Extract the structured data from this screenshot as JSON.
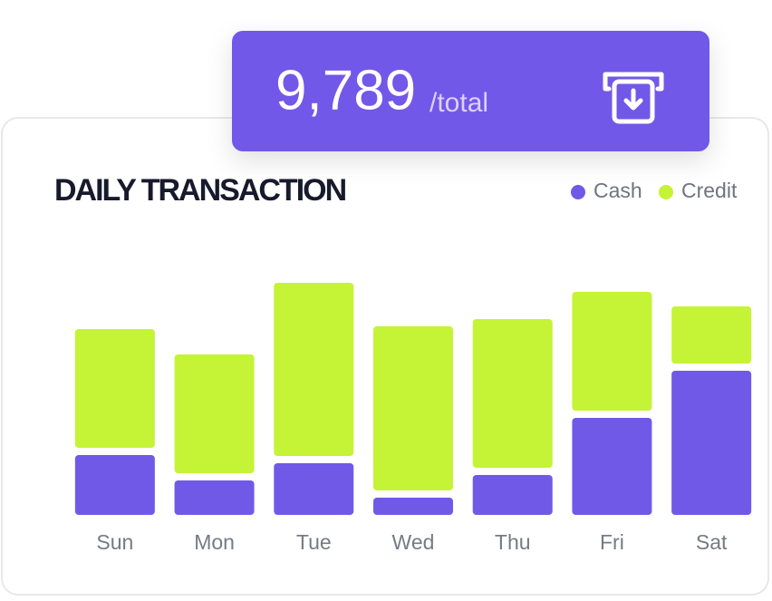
{
  "total": "9,789",
  "total_unit": "/total",
  "chart_data": {
    "type": "stacked-bar",
    "title": "DAILY TRANSACTION",
    "categories": [
      "Sun",
      "Mon",
      "Tue",
      "Wed",
      "Thu",
      "Fri",
      "Sat"
    ],
    "series": [
      {
        "name": "Cash",
        "color": "#7159e8",
        "values": [
          66,
          38,
          57,
          19,
          44,
          107,
          159
        ]
      },
      {
        "name": "Credit",
        "color": "#c5f335",
        "values": [
          131,
          131,
          191,
          181,
          164,
          131,
          63
        ]
      }
    ],
    "ylim": [
      0,
      300
    ]
  }
}
